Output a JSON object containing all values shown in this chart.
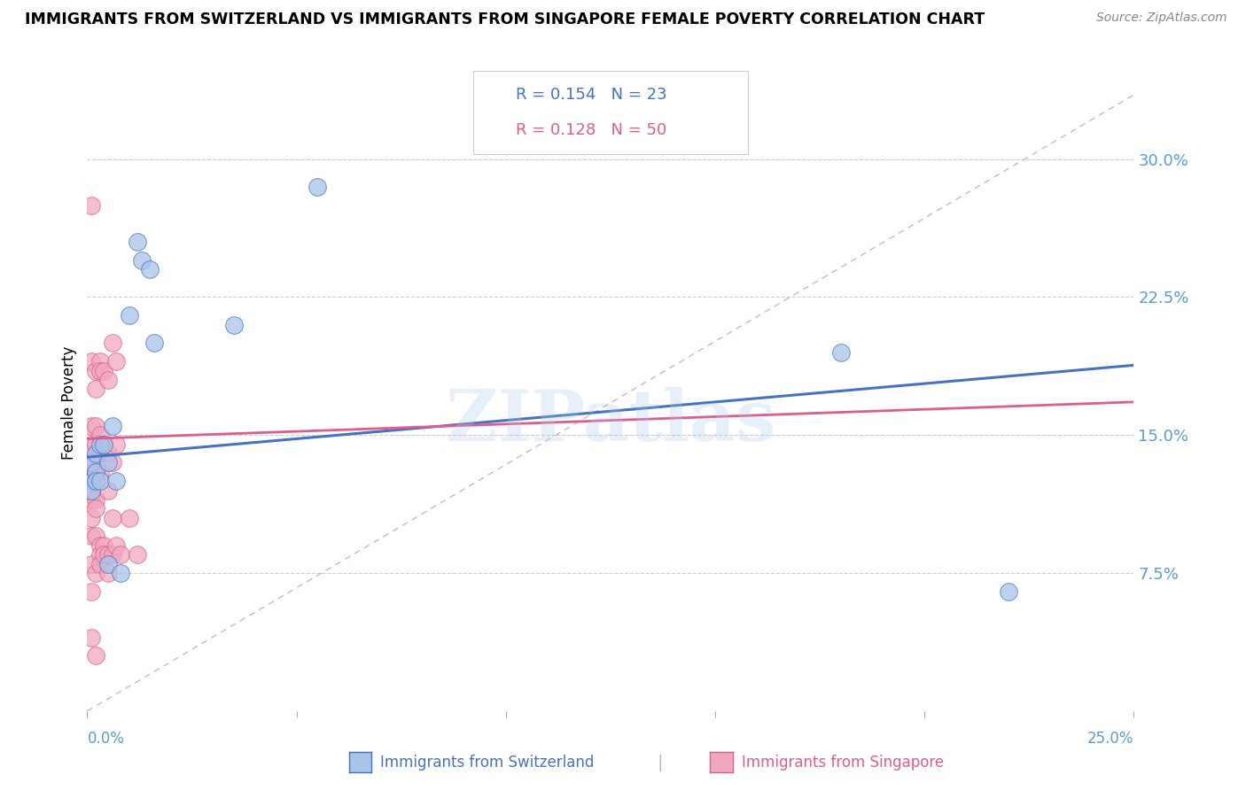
{
  "title": "IMMIGRANTS FROM SWITZERLAND VS IMMIGRANTS FROM SINGAPORE FEMALE POVERTY CORRELATION CHART",
  "source": "Source: ZipAtlas.com",
  "ylabel": "Female Poverty",
  "ytick_labels": [
    "30.0%",
    "22.5%",
    "15.0%",
    "7.5%"
  ],
  "ytick_values": [
    0.3,
    0.225,
    0.15,
    0.075
  ],
  "xlim": [
    0.0,
    0.25
  ],
  "ylim": [
    0.0,
    0.335
  ],
  "legend_r_switzerland": "R = 0.154",
  "legend_n_switzerland": "N = 23",
  "legend_r_singapore": "R = 0.128",
  "legend_n_singapore": "N = 50",
  "color_switzerland": "#aac4e8",
  "color_singapore": "#f0a8c0",
  "color_trendline_switzerland": "#4472c4",
  "color_trendline_singapore": "#e05c8c",
  "color_diagonal": "#c8b0b8",
  "color_yticks": "#5b9bd5",
  "color_xticks": "#5b9bd5",
  "watermark": "ZIPatlas",
  "switzerland_x": [
    0.001,
    0.001,
    0.001,
    0.002,
    0.002,
    0.002,
    0.003,
    0.003,
    0.004,
    0.005,
    0.005,
    0.006,
    0.007,
    0.008,
    0.01,
    0.012,
    0.013,
    0.015,
    0.016,
    0.035,
    0.055,
    0.18,
    0.22
  ],
  "switzerland_y": [
    0.135,
    0.125,
    0.12,
    0.14,
    0.13,
    0.125,
    0.145,
    0.125,
    0.145,
    0.135,
    0.08,
    0.155,
    0.125,
    0.075,
    0.215,
    0.255,
    0.245,
    0.24,
    0.2,
    0.21,
    0.285,
    0.195,
    0.065
  ],
  "singapore_x": [
    0.001,
    0.001,
    0.001,
    0.001,
    0.001,
    0.001,
    0.001,
    0.001,
    0.001,
    0.001,
    0.001,
    0.001,
    0.001,
    0.002,
    0.002,
    0.002,
    0.002,
    0.002,
    0.002,
    0.002,
    0.002,
    0.002,
    0.002,
    0.003,
    0.003,
    0.003,
    0.003,
    0.003,
    0.003,
    0.003,
    0.003,
    0.004,
    0.004,
    0.004,
    0.004,
    0.005,
    0.005,
    0.005,
    0.005,
    0.005,
    0.006,
    0.006,
    0.006,
    0.006,
    0.007,
    0.007,
    0.007,
    0.008,
    0.01,
    0.012
  ],
  "singapore_y": [
    0.275,
    0.19,
    0.155,
    0.145,
    0.135,
    0.13,
    0.125,
    0.115,
    0.105,
    0.095,
    0.08,
    0.065,
    0.04,
    0.185,
    0.175,
    0.155,
    0.145,
    0.13,
    0.115,
    0.11,
    0.095,
    0.075,
    0.03,
    0.19,
    0.185,
    0.15,
    0.14,
    0.13,
    0.09,
    0.085,
    0.08,
    0.185,
    0.145,
    0.09,
    0.085,
    0.18,
    0.14,
    0.12,
    0.085,
    0.075,
    0.2,
    0.135,
    0.105,
    0.085,
    0.19,
    0.145,
    0.09,
    0.085,
    0.105,
    0.085
  ],
  "sw_trend_x": [
    0.0,
    0.25
  ],
  "sw_trend_y": [
    0.138,
    0.188
  ],
  "sg_trend_x": [
    0.0,
    0.25
  ],
  "sg_trend_y": [
    0.148,
    0.168
  ]
}
